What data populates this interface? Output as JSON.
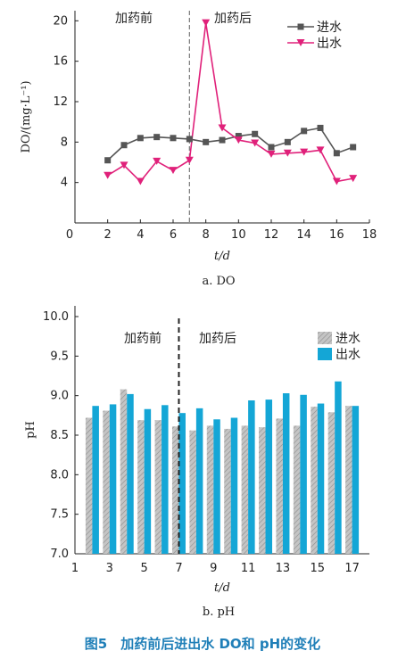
{
  "figure_caption": "图5　加药前后进出水 DO和 pH的变化",
  "chart_data": [
    {
      "type": "line",
      "caption": "a. DO",
      "xlabel": "t/d",
      "ylabel": "DO/(mg·L⁻¹)",
      "xlim": [
        0,
        18
      ],
      "ylim": [
        0,
        21
      ],
      "xticks": [
        0,
        2,
        4,
        6,
        8,
        10,
        12,
        14,
        16,
        18
      ],
      "yticks": [
        4,
        8,
        12,
        16,
        20
      ],
      "x_zero_label": "0",
      "annotations": {
        "before": "加药前",
        "after": "加药后"
      },
      "dosing_day": 7,
      "legend_position": "top-right",
      "x": [
        2,
        3,
        4,
        5,
        6,
        7,
        8,
        9,
        10,
        11,
        12,
        13,
        14,
        15,
        16,
        17
      ],
      "series": [
        {
          "name": "进水",
          "color": "#555555",
          "marker": "square",
          "values": [
            6.2,
            7.7,
            8.4,
            8.5,
            8.4,
            8.3,
            8.0,
            8.2,
            8.6,
            8.8,
            7.5,
            8.0,
            9.1,
            9.4,
            6.9,
            7.5
          ]
        },
        {
          "name": "出水",
          "color": "#e0217a",
          "marker": "triangle-down",
          "values": [
            4.7,
            5.7,
            4.1,
            6.1,
            5.2,
            6.2,
            19.8,
            9.4,
            8.2,
            7.9,
            6.8,
            6.9,
            7.0,
            7.2,
            4.1,
            4.4
          ]
        }
      ]
    },
    {
      "type": "bar",
      "caption": "b. pH",
      "xlabel": "t/d",
      "ylabel": "pH",
      "ylim": [
        7.0,
        10.0
      ],
      "yticks": [
        "7.0",
        "7.5",
        "8.0",
        "8.5",
        "9.0",
        "9.5",
        "10.0"
      ],
      "xticks": [
        1,
        3,
        5,
        7,
        9,
        11,
        13,
        15,
        17
      ],
      "annotations": {
        "before": "加药前",
        "after": "加药后"
      },
      "dosing_day": 7,
      "legend_position": "top-right",
      "x": [
        2,
        3,
        4,
        5,
        6,
        7,
        8,
        9,
        10,
        11,
        12,
        13,
        14,
        15,
        16,
        17
      ],
      "series": [
        {
          "name": "进水",
          "color": "#b8b8b8",
          "pattern": "hatched",
          "values": [
            8.72,
            8.81,
            9.08,
            8.69,
            8.69,
            8.61,
            8.56,
            8.62,
            8.58,
            8.62,
            8.6,
            8.71,
            8.62,
            8.86,
            8.79,
            8.87
          ]
        },
        {
          "name": "出水",
          "color": "#14a6d6",
          "values": [
            8.87,
            8.89,
            9.02,
            8.83,
            8.88,
            8.78,
            8.84,
            8.7,
            8.72,
            8.94,
            8.95,
            9.03,
            9.01,
            8.9,
            9.18,
            8.87
          ]
        }
      ]
    }
  ]
}
